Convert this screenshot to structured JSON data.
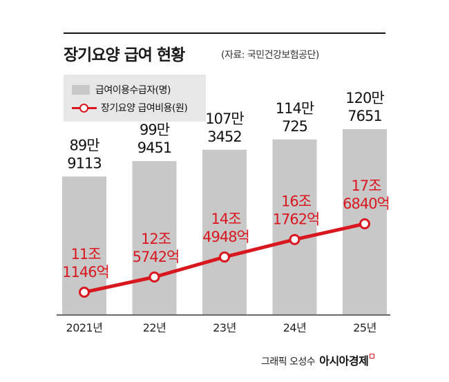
{
  "header": {
    "title": "장기요양 급여 현황",
    "source": "(자료: 국민건강보험공단)"
  },
  "legend": {
    "bar_label": "급여이용수급자(명)",
    "line_label": "장기요양 급여비용(원)"
  },
  "chart_data": {
    "type": "bar",
    "categories": [
      "2021년",
      "22년",
      "23년",
      "24년",
      "25년"
    ],
    "series": [
      {
        "name": "급여이용수급자(명)",
        "type": "bar",
        "values": [
          899113,
          999451,
          1073452,
          1140725,
          1207651
        ],
        "labels": [
          [
            "89만",
            "9113"
          ],
          [
            "99만",
            "9451"
          ],
          [
            "107만",
            "3452"
          ],
          [
            "114만",
            "725"
          ],
          [
            "120만",
            "7651"
          ]
        ]
      },
      {
        "name": "장기요양 급여비용(원)",
        "type": "line",
        "values": [
          111146,
          125742,
          144948,
          161762,
          176840
        ],
        "labels": [
          [
            "11조",
            "1146억"
          ],
          [
            "12조",
            "5742억"
          ],
          [
            "14조",
            "4948억"
          ],
          [
            "16조",
            "1762억"
          ],
          [
            "17조",
            "6840억"
          ]
        ]
      }
    ],
    "colors": {
      "bar": "#c8c8c8",
      "line": "#d8171f",
      "bar_label": "#111111",
      "line_label": "#d8171f"
    },
    "legend_position": "top-left",
    "grid": false
  },
  "footer": {
    "credit": "그래픽 오성수",
    "brand": "아시아경제"
  }
}
